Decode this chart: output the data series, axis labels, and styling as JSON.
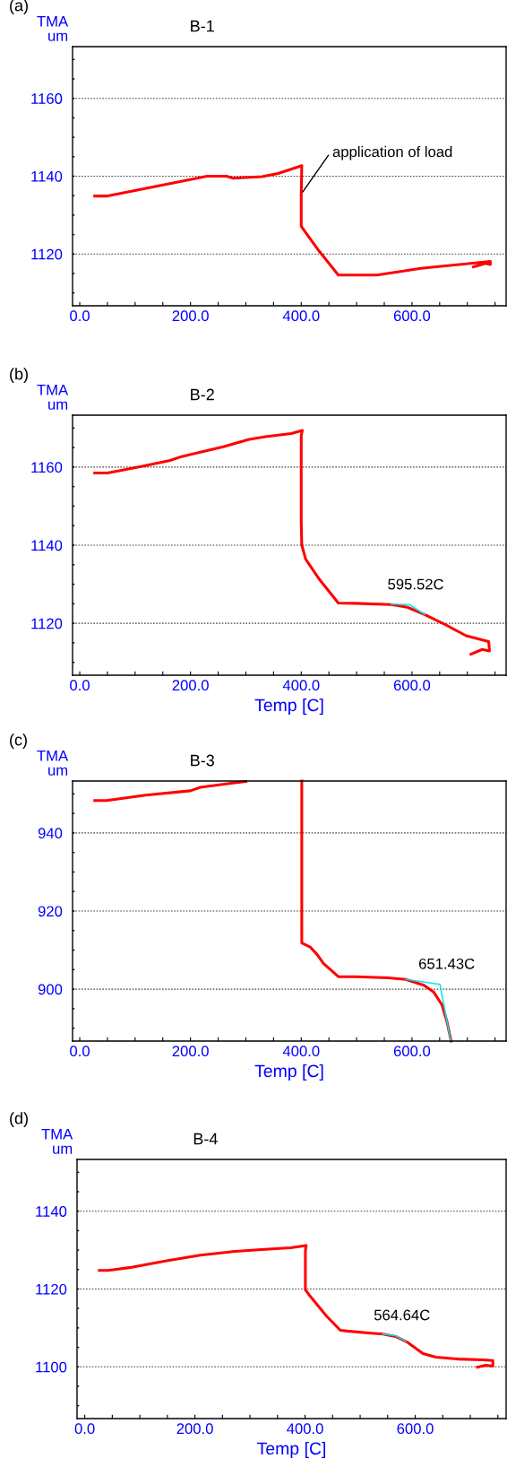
{
  "chart_data": [
    {
      "type": "line",
      "title": "B-1",
      "ylabel": "TMA\num",
      "xlim": [
        -13,
        770
      ],
      "xticks": [
        {
          "value": 0,
          "label": "0.0"
        },
        {
          "value": 50,
          "label": null
        },
        {
          "value": 100,
          "label": null
        },
        {
          "value": 150,
          "label": null
        },
        {
          "value": 200,
          "label": "200.0"
        },
        {
          "value": 250,
          "label": null
        },
        {
          "value": 300,
          "label": null
        },
        {
          "value": 350,
          "label": null
        },
        {
          "value": 400,
          "label": "400.0"
        },
        {
          "value": 450,
          "label": null
        },
        {
          "value": 500,
          "label": null
        },
        {
          "value": 550,
          "label": null
        },
        {
          "value": 600,
          "label": "600.0"
        },
        {
          "value": 650,
          "label": null
        },
        {
          "value": 700,
          "label": null
        },
        {
          "value": 750,
          "label": null
        }
      ],
      "ylim": [
        1106.7,
        1173.3
      ],
      "yticks": [
        {
          "value": 1110,
          "label": null
        },
        {
          "value": 1115,
          "label": null
        },
        1120,
        {
          "value": 1125,
          "label": null
        },
        {
          "value": 1130,
          "label": null
        },
        {
          "value": 1135,
          "label": null
        },
        1140,
        {
          "value": 1145,
          "label": null
        },
        {
          "value": 1150,
          "label": null
        },
        {
          "value": 1155,
          "label": null
        },
        1160,
        {
          "value": 1165,
          "label": null
        },
        {
          "value": 1170,
          "label": null
        }
      ],
      "grid": "y",
      "legend": false,
      "annotations": [
        "(a)",
        {
          "text": "application of load",
          "x": 400,
          "y": 1135.4
        }
      ],
      "series": [
        {
          "color": "#ff0000",
          "x": [
            27,
            48.5,
            230,
            265,
            277,
            329,
            358,
            401,
            400,
            400,
            432,
            467,
            537,
            616,
            741.5,
            741.5,
            733,
            711
          ],
          "values": [
            1134.9,
            1134.9,
            1140,
            1140,
            1139.5,
            1139.9,
            1140.7,
            1142.7,
            1135.4,
            1127.1,
            1120.8,
            1114.6,
            1114.6,
            1116.3,
            1118.1,
            1117.3,
            1117.6,
            1116.7
          ]
        }
      ]
    },
    {
      "type": "line",
      "title": "B-2",
      "ylabel": "TMA\num",
      "xlabel": "Temp [C]",
      "xlim": [
        -13,
        770
      ],
      "xticks": [
        {
          "value": 0,
          "label": "0.0"
        },
        {
          "value": 50,
          "label": null
        },
        {
          "value": 100,
          "label": null
        },
        {
          "value": 150,
          "label": null
        },
        {
          "value": 200,
          "label": "200.0"
        },
        {
          "value": 250,
          "label": null
        },
        {
          "value": 300,
          "label": null
        },
        {
          "value": 350,
          "label": null
        },
        {
          "value": 400,
          "label": "400.0"
        },
        {
          "value": 450,
          "label": null
        },
        {
          "value": 500,
          "label": null
        },
        {
          "value": 550,
          "label": null
        },
        {
          "value": 600,
          "label": "600.0"
        },
        {
          "value": 650,
          "label": null
        },
        {
          "value": 700,
          "label": null
        },
        {
          "value": 750,
          "label": null
        }
      ],
      "ylim": [
        1106.7,
        1173.3
      ],
      "yticks": [
        {
          "value": 1110,
          "label": null
        },
        {
          "value": 1115,
          "label": null
        },
        1120,
        {
          "value": 1125,
          "label": null
        },
        {
          "value": 1130,
          "label": null
        },
        {
          "value": 1135,
          "label": null
        },
        1140,
        {
          "value": 1145,
          "label": null
        },
        {
          "value": 1150,
          "label": null
        },
        {
          "value": 1155,
          "label": null
        },
        1160,
        {
          "value": 1165,
          "label": null
        },
        {
          "value": 1170,
          "label": null
        }
      ],
      "grid": "y",
      "legend": false,
      "annotations": [
        "(b)",
        {
          "text": "595.52C",
          "x": 595.52,
          "y": 1124.7
        }
      ],
      "series": [
        {
          "color": "#ff0000",
          "x": [
            27,
            50,
            113,
            163,
            184,
            259,
            306,
            335,
            382,
            402,
            400,
            400,
            401,
            408,
            432,
            467,
            499,
            563,
            592,
            622,
            657,
            698,
            738.6,
            740,
            727,
            706.5
          ],
          "values": [
            1158.5,
            1158.5,
            1160.2,
            1161.7,
            1162.7,
            1165.2,
            1167.1,
            1167.8,
            1168.6,
            1169.4,
            1168.1,
            1145.6,
            1140,
            1136.4,
            1131.4,
            1125.2,
            1125.1,
            1124.8,
            1124.1,
            1122.3,
            1119.9,
            1116.8,
            1115.3,
            1112.9,
            1113.3,
            1112.1
          ]
        },
        {
          "color": "#00e5ee",
          "x": [
            563,
            595,
            622.6
          ],
          "values": [
            1124.9,
            1124.8,
            1122.3
          ]
        }
      ]
    },
    {
      "type": "line",
      "title": "B-3",
      "ylabel": "TMA\num",
      "xlabel": "Temp [C]",
      "xlim": [
        -13,
        770
      ],
      "xticks": [
        {
          "value": 0,
          "label": "0.0"
        },
        {
          "value": 50,
          "label": null
        },
        {
          "value": 100,
          "label": null
        },
        {
          "value": 150,
          "label": null
        },
        {
          "value": 200,
          "label": "200.0"
        },
        {
          "value": 250,
          "label": null
        },
        {
          "value": 300,
          "label": null
        },
        {
          "value": 350,
          "label": null
        },
        {
          "value": 400,
          "label": "400.0"
        },
        {
          "value": 450,
          "label": null
        },
        {
          "value": 500,
          "label": null
        },
        {
          "value": 550,
          "label": null
        },
        {
          "value": 600,
          "label": "600.0"
        },
        {
          "value": 650,
          "label": null
        },
        {
          "value": 700,
          "label": null
        },
        {
          "value": 750,
          "label": null
        }
      ],
      "ylim": [
        886.7,
        953.3
      ],
      "yticks": [
        {
          "value": 890,
          "label": null
        },
        {
          "value": 895,
          "label": null
        },
        900,
        {
          "value": 905,
          "label": null
        },
        {
          "value": 910,
          "label": null
        },
        {
          "value": 915,
          "label": null
        },
        920,
        {
          "value": 925,
          "label": null
        },
        {
          "value": 930,
          "label": null
        },
        {
          "value": 935,
          "label": null
        },
        940,
        {
          "value": 945,
          "label": null
        },
        {
          "value": 950,
          "label": null
        }
      ],
      "grid": "y",
      "legend": false,
      "annotations": [
        "(c)",
        {
          "text": "651.43C",
          "x": 651.43,
          "y": 901.2
        }
      ],
      "series": [
        {
          "color": "#ff0000",
          "x": [
            27,
            48.5,
            119,
            200,
            218,
            300,
            370,
            401,
            401,
            416,
            428.6,
            440,
            467,
            499,
            557,
            589,
            621.6,
            639,
            654,
            663,
            670.6
          ],
          "values": [
            948.3,
            948.3,
            949.7,
            950.8,
            951.7,
            953.2,
            null,
            953.3,
            911.8,
            910.8,
            908.9,
            906.6,
            903.2,
            903.2,
            902.9,
            902.5,
            901,
            899.3,
            896,
            891.8,
            886.7
          ]
        },
        {
          "color": "#00e5ee",
          "x": [
            589,
            650.6,
            670
          ],
          "values": [
            902.5,
            901.2,
            886.7
          ]
        }
      ]
    },
    {
      "type": "line",
      "title": "B-4",
      "ylabel": "TMA\num",
      "xlabel": "Temp [C]",
      "xlim": [
        -14,
        765
      ],
      "xticks": [
        {
          "value": 0,
          "label": "0.0"
        },
        {
          "value": 50,
          "label": null
        },
        {
          "value": 100,
          "label": null
        },
        {
          "value": 150,
          "label": null
        },
        {
          "value": 200,
          "label": "200.0"
        },
        {
          "value": 250,
          "label": null
        },
        {
          "value": 300,
          "label": null
        },
        {
          "value": 350,
          "label": null
        },
        {
          "value": 400,
          "label": "400.0"
        },
        {
          "value": 450,
          "label": null
        },
        {
          "value": 500,
          "label": null
        },
        {
          "value": 550,
          "label": null
        },
        {
          "value": 600,
          "label": "600.0"
        },
        {
          "value": 650,
          "label": null
        },
        {
          "value": 700,
          "label": null
        },
        {
          "value": 750,
          "label": null
        }
      ],
      "ylim": [
        1086.7,
        1153.3
      ],
      "yticks": [
        {
          "value": 1090,
          "label": null
        },
        {
          "value": 1095,
          "label": null
        },
        1100,
        {
          "value": 1105,
          "label": null
        },
        {
          "value": 1110,
          "label": null
        },
        {
          "value": 1115,
          "label": null
        },
        1120,
        {
          "value": 1125,
          "label": null
        },
        {
          "value": 1130,
          "label": null
        },
        {
          "value": 1135,
          "label": null
        },
        1140,
        {
          "value": 1145,
          "label": null
        },
        {
          "value": 1150,
          "label": null
        }
      ],
      "grid": "y",
      "legend": false,
      "annotations": [
        "(d)",
        {
          "text": "564.64C",
          "x": 564.64,
          "y": 1108
        }
      ],
      "series": [
        {
          "color": "#ff0000",
          "x": [
            26.4,
            42.8,
            81,
            151,
            210,
            268,
            315,
            374,
            402,
            400.6,
            400.6,
            409,
            438,
            464,
            476,
            514,
            541,
            564.5,
            585,
            614,
            637.5,
            678,
            722,
            741,
            741,
            728,
            713
          ],
          "values": [
            1124.8,
            1124.8,
            1125.5,
            1127.3,
            1128.7,
            1129.6,
            1130.1,
            1130.6,
            1131.2,
            1129.8,
            1119.8,
            1118.2,
            1113.2,
            1109.4,
            1109.2,
            1108.7,
            1108.4,
            1107.8,
            1106.4,
            1103.4,
            1102.5,
            1102,
            1101.8,
            1101.6,
            1100.2,
            1100.4,
            1099.9
          ]
        },
        {
          "color": "#00e5ee",
          "x": [
            541,
            564.5,
            583
          ],
          "values": [
            1108.4,
            1108,
            1106.5
          ]
        }
      ]
    }
  ]
}
